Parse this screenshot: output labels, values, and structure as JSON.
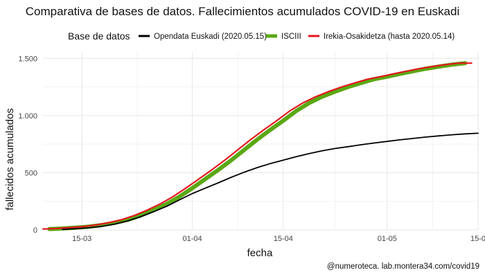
{
  "chart_data": {
    "type": "line",
    "title": "Comparativa de bases de datos. Fallecimientos acumulados COVID-19 en Euskadi",
    "xlabel": "fecha",
    "ylabel": "fallecidos acumulados",
    "caption": "@numeroteca. lab.montera34.com/covid19",
    "legend": {
      "title": "Base de datos",
      "position": "top"
    },
    "xlim": [
      "2020-03-09",
      "2020-05-15"
    ],
    "ylim": [
      0,
      1550
    ],
    "x_ticks": [
      {
        "date": "2020-03-15",
        "label": "15-03"
      },
      {
        "date": "2020-04-01",
        "label": "01-04"
      },
      {
        "date": "2020-04-15",
        "label": "15-04"
      },
      {
        "date": "2020-05-01",
        "label": "01-05"
      },
      {
        "date": "2020-05-15",
        "label": "15-0"
      }
    ],
    "y_ticks": [
      {
        "value": 0,
        "label": "0"
      },
      {
        "value": 500,
        "label": "500"
      },
      {
        "value": 1000,
        "label": "1.000"
      },
      {
        "value": 1500,
        "label": "1.500"
      }
    ],
    "grid": true,
    "series": [
      {
        "name": "Opendata Euskadi (2020.05.15)",
        "color": "#000000",
        "points": [
          [
            "2020-03-12",
            5
          ],
          [
            "2020-03-14",
            10
          ],
          [
            "2020-03-16",
            18
          ],
          [
            "2020-03-18",
            30
          ],
          [
            "2020-03-20",
            50
          ],
          [
            "2020-03-22",
            78
          ],
          [
            "2020-03-24",
            115
          ],
          [
            "2020-03-26",
            158
          ],
          [
            "2020-03-28",
            205
          ],
          [
            "2020-03-30",
            262
          ],
          [
            "2020-04-01",
            318
          ],
          [
            "2020-04-03",
            365
          ],
          [
            "2020-04-05",
            412
          ],
          [
            "2020-04-07",
            460
          ],
          [
            "2020-04-09",
            505
          ],
          [
            "2020-04-11",
            545
          ],
          [
            "2020-04-13",
            580
          ],
          [
            "2020-04-15",
            610
          ],
          [
            "2020-04-17",
            640
          ],
          [
            "2020-04-19",
            668
          ],
          [
            "2020-04-21",
            692
          ],
          [
            "2020-04-23",
            712
          ],
          [
            "2020-04-25",
            728
          ],
          [
            "2020-04-27",
            745
          ],
          [
            "2020-04-29",
            760
          ],
          [
            "2020-05-01",
            774
          ],
          [
            "2020-05-03",
            788
          ],
          [
            "2020-05-05",
            800
          ],
          [
            "2020-05-07",
            812
          ],
          [
            "2020-05-09",
            822
          ],
          [
            "2020-05-11",
            832
          ],
          [
            "2020-05-13",
            840
          ],
          [
            "2020-05-15",
            845
          ]
        ]
      },
      {
        "name": "ISCIII",
        "color": "#5aa814",
        "points": [
          [
            "2020-03-10",
            8
          ],
          [
            "2020-03-12",
            12
          ],
          [
            "2020-03-14",
            20
          ],
          [
            "2020-03-16",
            28
          ],
          [
            "2020-03-18",
            42
          ],
          [
            "2020-03-20",
            62
          ],
          [
            "2020-03-22",
            88
          ],
          [
            "2020-03-24",
            125
          ],
          [
            "2020-03-26",
            172
          ],
          [
            "2020-03-28",
            225
          ],
          [
            "2020-03-30",
            290
          ],
          [
            "2020-04-01",
            365
          ],
          [
            "2020-04-03",
            445
          ],
          [
            "2020-04-05",
            525
          ],
          [
            "2020-04-07",
            610
          ],
          [
            "2020-04-09",
            700
          ],
          [
            "2020-04-11",
            790
          ],
          [
            "2020-04-13",
            875
          ],
          [
            "2020-04-15",
            955
          ],
          [
            "2020-04-17",
            1040
          ],
          [
            "2020-04-19",
            1110
          ],
          [
            "2020-04-21",
            1165
          ],
          [
            "2020-04-23",
            1210
          ],
          [
            "2020-04-25",
            1250
          ],
          [
            "2020-04-27",
            1285
          ],
          [
            "2020-04-29",
            1318
          ],
          [
            "2020-05-01",
            1340
          ],
          [
            "2020-05-03",
            1365
          ],
          [
            "2020-05-05",
            1388
          ],
          [
            "2020-05-07",
            1410
          ],
          [
            "2020-05-09",
            1428
          ],
          [
            "2020-05-11",
            1445
          ],
          [
            "2020-05-13",
            1458
          ]
        ]
      },
      {
        "name": "Irekia-Osakidetza (hasta 2020.05.14)",
        "color": "#e6161c",
        "points": [
          [
            "2020-03-09",
            8
          ],
          [
            "2020-03-11",
            12
          ],
          [
            "2020-03-13",
            20
          ],
          [
            "2020-03-15",
            28
          ],
          [
            "2020-03-17",
            42
          ],
          [
            "2020-03-19",
            62
          ],
          [
            "2020-03-21",
            88
          ],
          [
            "2020-03-23",
            125
          ],
          [
            "2020-03-25",
            172
          ],
          [
            "2020-03-27",
            225
          ],
          [
            "2020-03-29",
            290
          ],
          [
            "2020-03-31",
            365
          ],
          [
            "2020-04-02",
            445
          ],
          [
            "2020-04-04",
            525
          ],
          [
            "2020-04-06",
            610
          ],
          [
            "2020-04-08",
            700
          ],
          [
            "2020-04-10",
            790
          ],
          [
            "2020-04-12",
            875
          ],
          [
            "2020-04-14",
            955
          ],
          [
            "2020-04-16",
            1040
          ],
          [
            "2020-04-18",
            1110
          ],
          [
            "2020-04-20",
            1165
          ],
          [
            "2020-04-22",
            1210
          ],
          [
            "2020-04-24",
            1250
          ],
          [
            "2020-04-26",
            1285
          ],
          [
            "2020-04-28",
            1318
          ],
          [
            "2020-04-30",
            1340
          ],
          [
            "2020-05-02",
            1365
          ],
          [
            "2020-05-04",
            1388
          ],
          [
            "2020-05-06",
            1410
          ],
          [
            "2020-05-08",
            1428
          ],
          [
            "2020-05-10",
            1445
          ],
          [
            "2020-05-12",
            1458
          ],
          [
            "2020-05-14",
            1458
          ]
        ]
      }
    ]
  }
}
